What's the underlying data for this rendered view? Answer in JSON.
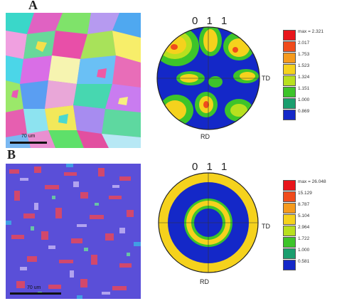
{
  "panels": [
    {
      "label": "A",
      "scale_bar": "70 um",
      "pole_figure": {
        "title": "0 1 1",
        "right_label": "TD",
        "bottom_label": "RD"
      },
      "legend": {
        "entries": [
          "max = 2.321",
          "2.017",
          "1.753",
          "1.523",
          "1.324",
          "1.151",
          "1.000",
          "0.869"
        ],
        "colors": [
          "#e8151b",
          "#f04b1c",
          "#f59a1d",
          "#f5d21d",
          "#b8e01f",
          "#3dc42a",
          "#1a9e6e",
          "#1428c8"
        ]
      }
    },
    {
      "label": "B",
      "scale_bar": "70 um",
      "pole_figure": {
        "title": "0 1 1",
        "right_label": "TD",
        "bottom_label": "RD"
      },
      "legend": {
        "entries": [
          "max = 26.048",
          "15.129",
          "8.787",
          "5.104",
          "2.964",
          "1.722",
          "1.000",
          "0.581"
        ],
        "colors": [
          "#e8151b",
          "#f04b1c",
          "#f59a1d",
          "#f5d21d",
          "#b8e01f",
          "#3dc42a",
          "#1a9e6e",
          "#1428c8"
        ]
      }
    }
  ]
}
